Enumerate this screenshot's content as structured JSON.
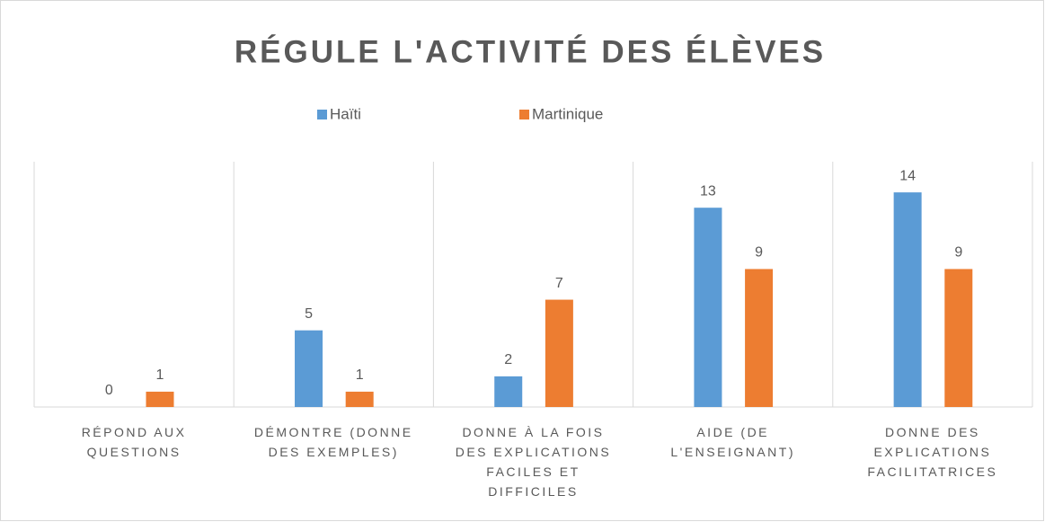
{
  "chart_data": {
    "type": "bar",
    "title": "RÉGULE L'ACTIVITÉ DES ÉLÈVES",
    "categories": [
      "RÉPOND AUX QUESTIONS",
      "DÉMONTRE (DONNE DES EXEMPLES)",
      "DONNE À LA FOIS DES EXPLICATIONS FACILES ET DIFFICILES",
      "AIDE (DE L'ENSEIGNANT)",
      "DONNE DES EXPLICATIONS FACILITATRICES"
    ],
    "series": [
      {
        "name": "Haïti",
        "color": "#5b9bd5",
        "values": [
          0,
          5,
          2,
          13,
          14
        ]
      },
      {
        "name": "Martinique",
        "color": "#ed7d31",
        "values": [
          1,
          1,
          7,
          9,
          9
        ]
      }
    ],
    "ylim": [
      0,
      16
    ],
    "legend": "top",
    "grid": false
  }
}
